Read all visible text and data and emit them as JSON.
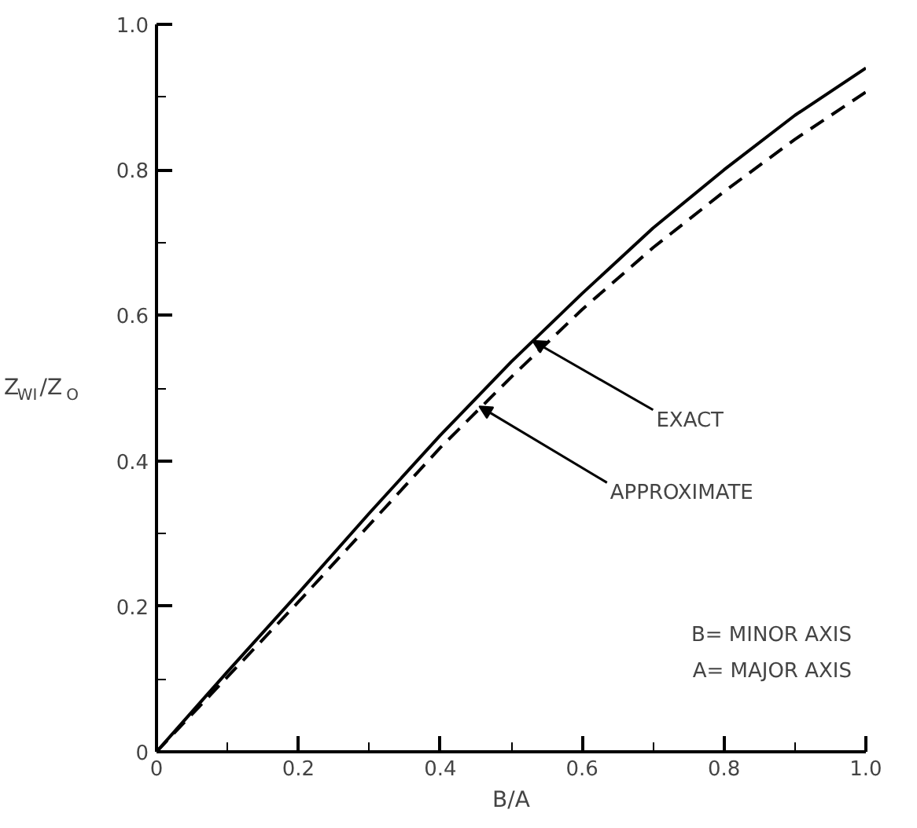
{
  "chart_data": {
    "type": "line",
    "xlabel": "B/A",
    "ylabel": "Z$_{WI}$/Z$_{O}$",
    "x": [
      0,
      0.1,
      0.2,
      0.3,
      0.4,
      0.5,
      0.6,
      0.7,
      0.8,
      0.9,
      1.0
    ],
    "series": [
      {
        "color": "#000000",
        "line_style": "solid",
        "values": [
          0,
          0.11,
          0.218,
          0.328,
          0.435,
          0.536,
          0.63,
          0.72,
          0.8,
          0.875,
          0.94
        ]
      },
      {
        "color": "#000000",
        "line_style": "dashed",
        "values": [
          0,
          0.103,
          0.206,
          0.312,
          0.418,
          0.515,
          0.608,
          0.693,
          0.77,
          0.842,
          0.907
        ]
      }
    ],
    "xlim": [
      0,
      1.0
    ],
    "ylim": [
      0,
      1.0
    ],
    "xticks": [
      {
        "value": 0,
        "label": "0"
      },
      {
        "value": 0.1,
        "label": null
      },
      {
        "value": 0.2,
        "label": "0.2"
      },
      {
        "value": 0.3,
        "label": null
      },
      {
        "value": 0.4,
        "label": "0.4"
      },
      {
        "value": 0.5,
        "label": null
      },
      {
        "value": 0.6,
        "label": "0.6"
      },
      {
        "value": 0.7,
        "label": null
      },
      {
        "value": 0.8,
        "label": "0.8"
      },
      {
        "value": 0.9,
        "label": null
      },
      {
        "value": 1.0,
        "label": "1.0"
      }
    ],
    "yticks": [
      {
        "value": 0,
        "label": "0"
      },
      {
        "value": 0.1,
        "label": null
      },
      {
        "value": 0.2,
        "label": "0.2"
      },
      {
        "value": 0.3,
        "label": null
      },
      {
        "value": 0.4,
        "label": "0.4"
      },
      {
        "value": 0.5,
        "label": null
      },
      {
        "value": 0.6,
        "label": "0.6"
      },
      {
        "value": 0.7,
        "label": null
      },
      {
        "value": 0.8,
        "label": "0.8"
      },
      {
        "value": 0.9,
        "label": null
      },
      {
        "value": 1.0,
        "label": "1.0"
      }
    ],
    "annotations": [
      {
        "text": "EXACT",
        "x": 0.53,
        "y": 0.565
      },
      {
        "text": "APPROXIMATE",
        "x": 0.455,
        "y": 0.475
      },
      "B= MINOR AXIS",
      "A= MAJOR AXIS"
    ],
    "grid": false,
    "marker": "none"
  }
}
